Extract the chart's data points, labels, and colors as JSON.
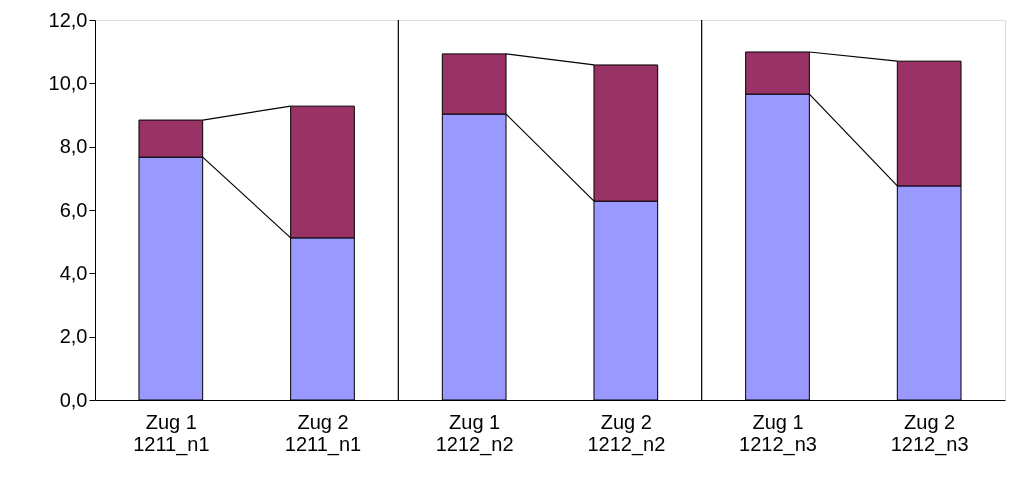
{
  "chart_data": {
    "type": "bar",
    "stacked": true,
    "categories": [
      "Zug 1\n1211_n1",
      "Zug 2\n1211_n1",
      "Zug 1\n1212_n2",
      "Zug 2\n1212_n2",
      "Zug 1\n1212_n3",
      "Zug 2\n1212_n3"
    ],
    "series": [
      {
        "color": "#9999ff",
        "values": [
          7.67,
          5.12,
          9.03,
          6.28,
          9.66,
          6.76
        ]
      },
      {
        "color": "#993366",
        "values": [
          1.17,
          4.16,
          1.9,
          4.3,
          1.33,
          3.94
        ]
      }
    ],
    "ylim": [
      0,
      12
    ],
    "yticks": [
      {
        "value": 0,
        "label": "0,0"
      },
      {
        "value": 2,
        "label": "2,0"
      },
      {
        "value": 4,
        "label": "4,0"
      },
      {
        "value": 6,
        "label": "6,0"
      },
      {
        "value": 8,
        "label": "8,0"
      },
      {
        "value": 10,
        "label": "10,0"
      },
      {
        "value": 12,
        "label": "12,0"
      }
    ],
    "grid": false
  }
}
